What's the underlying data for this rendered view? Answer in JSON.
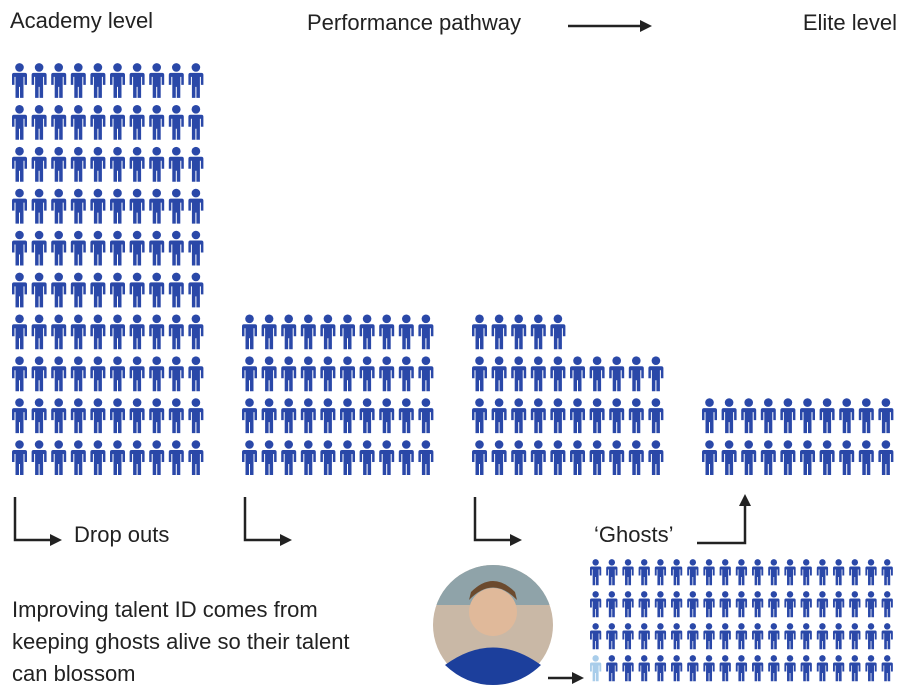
{
  "header": {
    "start": "Academy level",
    "middle": "Performance pathway",
    "end": "Elite level"
  },
  "groups": [
    {
      "count": 100
    },
    {
      "count": 40
    },
    {
      "count": 35
    },
    {
      "count": 20
    }
  ],
  "drop_outs": "Drop outs",
  "ghosts": {
    "label": "‘Ghosts’",
    "count": 76,
    "highlighted": 1
  },
  "caption": {
    "lines": [
      "Improving talent ID comes from",
      "keeping ghosts alive so their talent",
      "can blossom"
    ]
  }
}
